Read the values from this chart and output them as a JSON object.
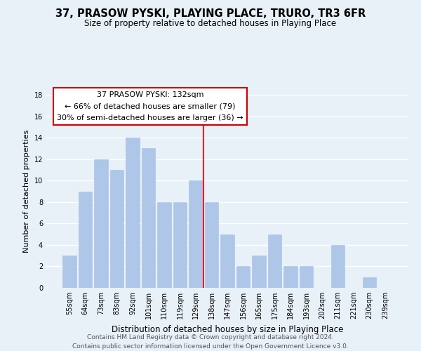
{
  "title": "37, PRASOW PYSKI, PLAYING PLACE, TRURO, TR3 6FR",
  "subtitle": "Size of property relative to detached houses in Playing Place",
  "xlabel": "Distribution of detached houses by size in Playing Place",
  "ylabel": "Number of detached properties",
  "footnote1": "Contains HM Land Registry data © Crown copyright and database right 2024.",
  "footnote2": "Contains public sector information licensed under the Open Government Licence v3.0.",
  "bar_labels": [
    "55sqm",
    "64sqm",
    "73sqm",
    "83sqm",
    "92sqm",
    "101sqm",
    "110sqm",
    "119sqm",
    "129sqm",
    "138sqm",
    "147sqm",
    "156sqm",
    "165sqm",
    "175sqm",
    "184sqm",
    "193sqm",
    "202sqm",
    "211sqm",
    "221sqm",
    "230sqm",
    "239sqm"
  ],
  "bar_values": [
    3,
    9,
    12,
    11,
    14,
    13,
    8,
    8,
    10,
    8,
    5,
    2,
    3,
    5,
    2,
    2,
    0,
    4,
    0,
    1,
    0
  ],
  "bar_color": "#aec6e8",
  "bar_edge_color": "#aec6e8",
  "vline_color": "red",
  "annotation_title": "37 PRASOW PYSKI: 132sqm",
  "annotation_line1": "← 66% of detached houses are smaller (79)",
  "annotation_line2": "30% of semi-detached houses are larger (36) →",
  "annotation_box_facecolor": "#ffffff",
  "annotation_box_edgecolor": "#cc0000",
  "ylim": [
    0,
    18
  ],
  "yticks": [
    0,
    2,
    4,
    6,
    8,
    10,
    12,
    14,
    16,
    18
  ],
  "bg_color": "#e8f0f8",
  "grid_color": "#ffffff",
  "title_fontsize": 10.5,
  "subtitle_fontsize": 8.5,
  "tick_fontsize": 7,
  "ylabel_fontsize": 8,
  "xlabel_fontsize": 8.5,
  "annotation_fontsize": 8,
  "footnote_fontsize": 6.5
}
